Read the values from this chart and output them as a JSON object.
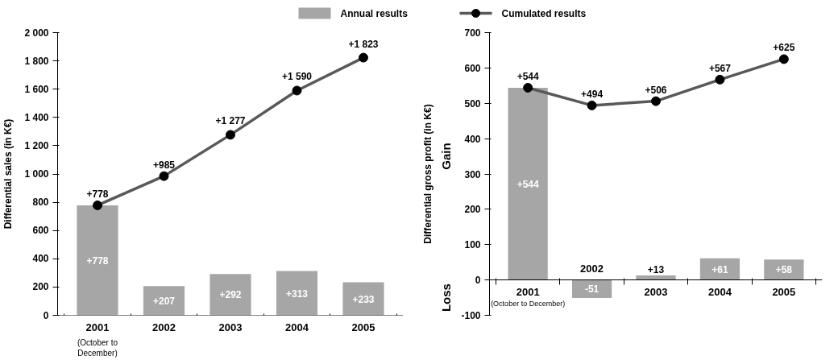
{
  "chart_data": [
    {
      "type": "bar",
      "ylabel": "Differential sales (in K€)",
      "categories": [
        "2001",
        "2002",
        "2003",
        "2004",
        "2005"
      ],
      "ylim": [
        0,
        2000
      ],
      "yticks": [
        0,
        200,
        400,
        600,
        800,
        {
          "value": 1000,
          "label": "1 000"
        },
        {
          "value": 1200,
          "label": "1 200"
        },
        {
          "value": 1400,
          "label": "1 400"
        },
        {
          "value": 1600,
          "label": "1 600"
        },
        {
          "value": 1800,
          "label": "1 800"
        },
        {
          "value": 2000,
          "label": "2 000"
        }
      ],
      "grid": false,
      "legend": "top",
      "marker": "circle",
      "line_style": "solid",
      "series": [
        {
          "name": "Annual results",
          "color": "#a6a6a6",
          "values": [
            778,
            207,
            292,
            313,
            233
          ],
          "value_labels": [
            "+778",
            "+207",
            "+292",
            "+313",
            "+233"
          ]
        },
        {
          "name": "Cumulated results",
          "type": "line",
          "color": "#595959",
          "values": [
            778,
            985,
            1277,
            1590,
            1823
          ],
          "value_labels": [
            "+778",
            "+985",
            "+1 277",
            "+1 590",
            "+1 823"
          ]
        }
      ],
      "annotations": [
        "(October to December)"
      ]
    },
    {
      "type": "bar",
      "ylabel": "Differential gross profit (in K€)",
      "categories": [
        "2001",
        "2002",
        "2003",
        "2004",
        "2005"
      ],
      "ylim": [
        -100,
        700
      ],
      "yticks": [
        -100,
        0,
        100,
        200,
        300,
        400,
        500,
        600,
        700
      ],
      "grid": false,
      "marker": "circle",
      "line_style": "solid",
      "series": [
        {
          "color": "#a6a6a6",
          "values": [
            544,
            -51,
            13,
            61,
            58
          ],
          "value_labels": [
            "+544",
            "-51",
            "+13",
            "+61",
            "+58"
          ]
        },
        {
          "type": "line",
          "color": "#595959",
          "values": [
            544,
            494,
            506,
            567,
            625
          ],
          "value_labels": [
            "+544",
            "+494",
            "+506",
            "+567",
            "+625"
          ]
        }
      ],
      "annotations": [
        "(October to December)",
        "Gain",
        "Loss"
      ]
    }
  ]
}
